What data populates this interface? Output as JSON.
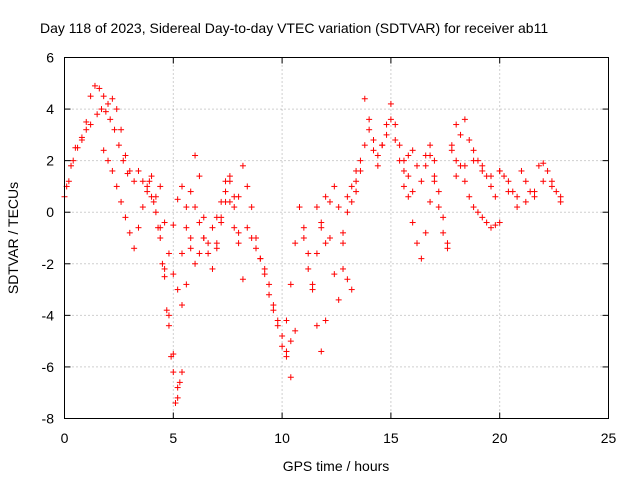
{
  "chart_data": {
    "type": "scatter",
    "title": "Day 118 of 2023, Sidereal Day-to-day VTEC variation (SDTVAR) for receiver ab11",
    "xlabel": "GPS time / hours",
    "ylabel": "SDTVAR / TECUs",
    "xlim": [
      0,
      25
    ],
    "ylim": [
      -8,
      6
    ],
    "xticks": [
      0,
      5,
      10,
      15,
      20,
      25
    ],
    "yticks": [
      -8,
      -6,
      -4,
      -2,
      0,
      2,
      4,
      6
    ],
    "xtick_labels": [
      "0",
      "5",
      "10",
      "15",
      "20",
      "25"
    ],
    "ytick_labels": [
      "-8",
      "-6",
      "-4",
      "-2",
      "0",
      "2",
      "4",
      "6"
    ],
    "grid": true,
    "marker": "+",
    "color": "#ff0000",
    "series": [
      {
        "name": "trace-1",
        "x": [
          0.0,
          0.2,
          0.4,
          0.6,
          0.8,
          1.0,
          1.2,
          1.4,
          1.6,
          1.8,
          2.0,
          2.2,
          2.4,
          2.6,
          2.8,
          3.0,
          3.2
        ],
        "y": [
          0.6,
          1.2,
          2.0,
          2.5,
          2.8,
          3.5,
          4.5,
          4.9,
          4.8,
          4.5,
          4.2,
          4.4,
          4.0,
          3.2,
          2.2,
          1.6,
          1.2
        ]
      },
      {
        "name": "trace-2",
        "x": [
          0.1,
          0.3,
          0.5,
          0.8,
          1.0,
          1.2,
          1.5,
          1.7,
          1.9,
          2.1,
          2.3,
          2.5,
          2.7,
          2.9
        ],
        "y": [
          1.0,
          1.8,
          2.5,
          2.9,
          3.2,
          3.4,
          3.8,
          4.0,
          3.9,
          3.6,
          3.2,
          2.6,
          2.0,
          1.5
        ]
      },
      {
        "name": "trace-3",
        "x": [
          1.8,
          2.0,
          2.2,
          2.4,
          2.6,
          2.8,
          3.0,
          3.2,
          3.4,
          3.6,
          3.8,
          4.0
        ],
        "y": [
          2.4,
          2.0,
          1.6,
          1.0,
          0.4,
          -0.2,
          -0.8,
          -1.4,
          -0.6,
          0.2,
          0.8,
          1.4
        ]
      },
      {
        "name": "trace-4",
        "x": [
          3.4,
          3.6,
          3.8,
          4.0,
          4.2,
          4.4,
          4.6,
          4.8,
          5.0,
          5.2
        ],
        "y": [
          1.6,
          1.2,
          1.0,
          0.6,
          0.0,
          -1.0,
          -2.5,
          -4.0,
          -5.5,
          -6.8
        ]
      },
      {
        "name": "trace-5",
        "x": [
          3.9,
          4.1,
          4.3,
          4.5,
          4.7,
          4.9,
          5.1,
          5.3
        ],
        "y": [
          1.2,
          0.4,
          -0.6,
          -2.0,
          -3.8,
          -5.6,
          -7.4,
          -6.6
        ]
      },
      {
        "name": "trace-6",
        "x": [
          4.2,
          4.4,
          4.6,
          4.8,
          5.0,
          5.2,
          5.4
        ],
        "y": [
          0.6,
          -0.6,
          -2.2,
          -4.4,
          -6.2,
          -7.2,
          -6.2
        ]
      },
      {
        "name": "trace-7",
        "x": [
          4.4,
          4.6,
          4.8,
          5.0,
          5.2,
          5.4,
          5.6,
          5.8,
          6.0
        ],
        "y": [
          1.0,
          -0.4,
          -1.6,
          -2.4,
          -3.0,
          -3.6,
          -2.8,
          -1.4,
          0.2
        ]
      },
      {
        "name": "trace-8",
        "x": [
          5.0,
          5.2,
          5.4,
          5.6,
          5.8,
          6.0,
          6.2,
          6.4
        ],
        "y": [
          -0.5,
          0.5,
          1.0,
          0.2,
          -1.0,
          -2.0,
          -1.6,
          -1.0
        ]
      },
      {
        "name": "trace-9",
        "x": [
          5.4,
          5.6,
          5.8,
          6.0,
          6.2,
          6.4,
          6.6,
          6.8,
          7.0,
          7.2,
          7.4,
          7.6,
          7.8,
          8.0,
          8.2,
          8.4,
          8.6,
          8.8,
          9.0,
          9.2,
          9.4,
          9.6,
          9.8,
          10.0,
          10.2,
          10.4,
          10.6
        ],
        "y": [
          -1.6,
          -0.6,
          0.8,
          2.2,
          1.4,
          -0.2,
          -1.2,
          -0.6,
          -0.2,
          0.4,
          1.2,
          0.4,
          -0.6,
          0.6,
          1.8,
          1.0,
          0.2,
          -1.0,
          -1.8,
          -2.4,
          -3.2,
          -3.8,
          -4.2,
          -4.8,
          -5.4,
          -5.0,
          -4.6
        ]
      },
      {
        "name": "trace-10",
        "x": [
          6.2,
          6.4,
          6.6,
          6.8,
          7.0,
          7.2,
          7.4,
          7.6,
          7.8,
          8.0
        ],
        "y": [
          -0.4,
          -1.0,
          -1.6,
          -2.2,
          -1.4,
          -0.2,
          0.8,
          1.4,
          0.6,
          -0.8
        ]
      },
      {
        "name": "trace-11",
        "x": [
          7.0,
          7.2,
          7.4,
          7.6,
          7.8,
          8.0,
          8.2
        ],
        "y": [
          -1.2,
          -0.4,
          0.4,
          1.2,
          0.2,
          -1.2,
          -2.6
        ]
      },
      {
        "name": "trace-12",
        "x": [
          8.4,
          8.6,
          8.8,
          9.0,
          9.2,
          9.4,
          9.6,
          9.8,
          10.0,
          10.2,
          10.4
        ],
        "y": [
          -0.6,
          -1.0,
          -1.4,
          -1.8,
          -2.2,
          -2.8,
          -3.6,
          -4.4,
          -5.2,
          -5.6,
          -6.4
        ]
      },
      {
        "name": "trace-13",
        "x": [
          10.2,
          10.4,
          10.6,
          10.8,
          11.0,
          11.2,
          11.4,
          11.6,
          11.8,
          12.0,
          12.2,
          12.4,
          12.6,
          12.8,
          13.0
        ],
        "y": [
          -4.2,
          -2.8,
          -1.2,
          0.2,
          -1.0,
          -2.2,
          -2.8,
          -1.6,
          -0.4,
          0.6,
          -1.0,
          -2.4,
          -3.4,
          -1.2,
          0.6
        ]
      },
      {
        "name": "trace-14",
        "x": [
          11.0,
          11.2,
          11.4,
          11.6,
          11.8,
          12.0
        ],
        "y": [
          -0.6,
          -1.6,
          -3.0,
          -4.4,
          -5.4,
          -4.2
        ]
      },
      {
        "name": "trace-15",
        "x": [
          11.6,
          11.8,
          12.0,
          12.2,
          12.4,
          12.6,
          12.8,
          13.0,
          13.2,
          13.4
        ],
        "y": [
          0.2,
          -0.6,
          -1.2,
          0.4,
          1.0,
          0.2,
          -0.8,
          0.0,
          1.0,
          1.6
        ]
      },
      {
        "name": "trace-16",
        "x": [
          12.8,
          13.0,
          13.2
        ],
        "y": [
          -2.2,
          -2.6,
          -3.0
        ]
      },
      {
        "name": "trace-17",
        "x": [
          13.2,
          13.4,
          13.6,
          13.8,
          14.0,
          14.2,
          14.4,
          14.6,
          14.8,
          15.0,
          15.2,
          15.4,
          15.6,
          15.8,
          16.0,
          16.2,
          16.4,
          16.6,
          16.8,
          17.0
        ],
        "y": [
          0.4,
          1.2,
          2.0,
          4.4,
          3.6,
          2.8,
          2.2,
          2.6,
          3.0,
          3.6,
          2.8,
          2.0,
          1.6,
          2.2,
          2.4,
          1.8,
          1.2,
          2.2,
          2.6,
          2.0
        ]
      },
      {
        "name": "trace-18",
        "x": [
          13.4,
          13.6,
          13.8,
          14.0,
          14.2,
          14.4,
          14.6,
          14.8,
          15.0,
          15.2,
          15.4,
          15.6,
          15.8,
          16.0
        ],
        "y": [
          0.8,
          1.6,
          2.6,
          3.2,
          2.4,
          1.8,
          2.6,
          3.4,
          4.2,
          3.4,
          2.6,
          2.0,
          1.4,
          0.8
        ]
      },
      {
        "name": "trace-19",
        "x": [
          15.6,
          15.8,
          16.0,
          16.2,
          16.4,
          16.6,
          16.8,
          17.0,
          17.2,
          17.4,
          17.6
        ],
        "y": [
          1.0,
          0.6,
          -0.4,
          -1.2,
          -1.8,
          -0.8,
          0.4,
          1.4,
          0.8,
          -0.2,
          -1.2
        ]
      },
      {
        "name": "trace-20",
        "x": [
          16.6,
          16.8,
          17.0,
          17.2,
          17.4,
          17.6,
          17.8,
          18.0,
          18.2,
          18.4,
          18.6,
          18.8,
          19.0,
          19.2,
          19.4,
          19.6,
          19.8,
          20.0
        ],
        "y": [
          1.8,
          2.2,
          1.2,
          0.2,
          -0.8,
          -1.4,
          2.6,
          3.4,
          3.0,
          3.6,
          2.8,
          2.4,
          2.0,
          1.6,
          1.4,
          1.0,
          0.6,
          -0.4
        ]
      },
      {
        "name": "trace-21",
        "x": [
          17.8,
          18.0,
          18.2,
          18.4,
          18.6,
          18.8,
          19.0,
          19.2,
          19.4,
          19.6,
          19.8,
          20.0,
          20.2,
          20.4,
          20.6,
          20.8,
          21.0,
          21.2,
          21.4,
          21.6,
          21.8,
          22.0,
          22.2,
          22.4,
          22.6,
          22.8
        ],
        "y": [
          2.4,
          2.0,
          1.8,
          1.2,
          0.6,
          0.2,
          0.0,
          -0.2,
          -0.4,
          -0.6,
          -0.5,
          1.6,
          1.4,
          1.2,
          0.8,
          0.6,
          1.6,
          1.2,
          0.8,
          0.6,
          1.8,
          1.9,
          1.6,
          1.2,
          0.8,
          0.4
        ]
      },
      {
        "name": "trace-22",
        "x": [
          18.0,
          18.4,
          18.8,
          19.2,
          19.6,
          20.0,
          20.4,
          20.8,
          21.2,
          21.6,
          22.0,
          22.4,
          22.8
        ],
        "y": [
          1.4,
          1.8,
          2.0,
          1.8,
          1.4,
          1.6,
          0.8,
          0.2,
          0.4,
          0.8,
          1.2,
          1.0,
          0.6
        ]
      }
    ]
  }
}
